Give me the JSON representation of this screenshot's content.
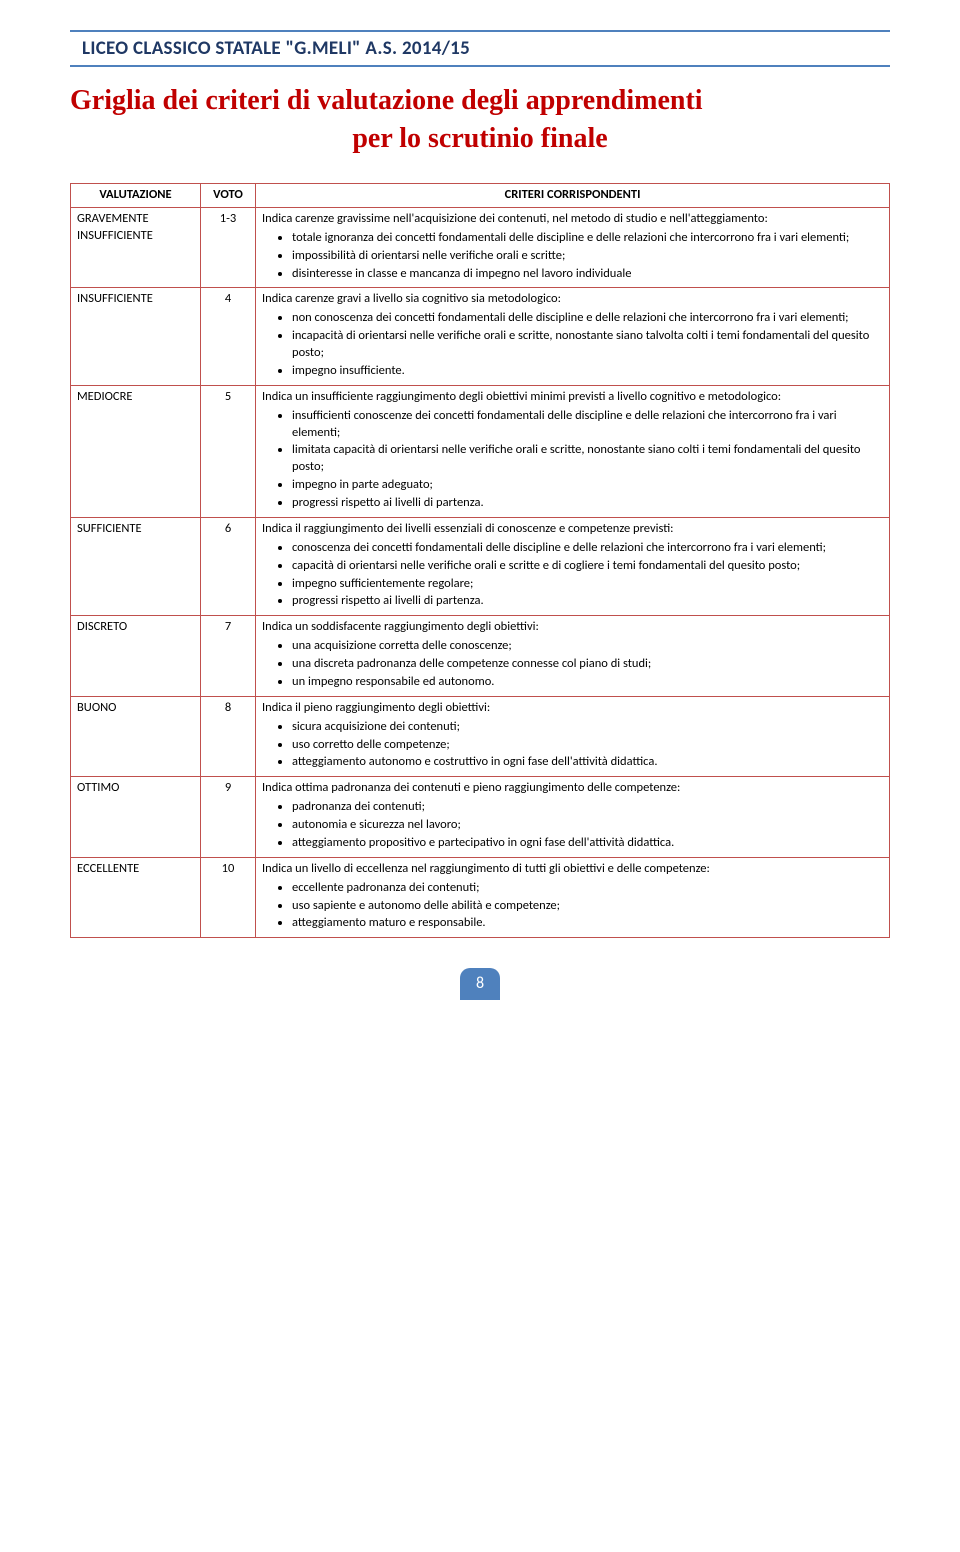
{
  "header": "LICEO CLASSICO STATALE \"G.MELI\" A.S. 2014/15",
  "title_line1": "Griglia dei criteri di valutazione degli apprendimenti",
  "title_line2": "per lo scrutinio finale",
  "columns": {
    "c1": "VALUTAZIONE",
    "c2": "VOTO",
    "c3": "CRITERI CORRISPONDENTI"
  },
  "rows": [
    {
      "label_line1": "GRAVEMENTE",
      "label_line2": "INSUFFICIENTE",
      "voto": "1-3",
      "intro": "Indica carenze gravissime nell'acquisizione dei contenuti, nel metodo di studio e nell'atteggiamento:",
      "bullets": [
        "totale ignoranza dei concetti fondamentali delle discipline e delle relazioni che intercorrono fra i vari elementi;",
        "impossibilità di orientarsi nelle verifiche orali e scritte;",
        "disinteresse in classe e mancanza di impegno nel lavoro individuale"
      ]
    },
    {
      "label": "INSUFFICIENTE",
      "voto": "4",
      "intro": "Indica carenze gravi a livello sia cognitivo sia metodologico:",
      "bullets": [
        "non conoscenza dei concetti fondamentali delle discipline e delle relazioni che intercorrono fra i vari elementi;",
        "incapacità di orientarsi nelle verifiche orali e scritte, nonostante siano talvolta colti i temi fondamentali del quesito posto;",
        "impegno insufficiente."
      ]
    },
    {
      "label": "MEDIOCRE",
      "voto": "5",
      "intro": "Indica un insufficiente raggiungimento degli obiettivi minimi previsti a livello cognitivo e metodologico:",
      "bullets": [
        "insufficienti conoscenze dei concetti fondamentali delle discipline e delle relazioni che intercorrono fra i vari elementi;",
        "limitata capacità di orientarsi nelle verifiche orali e scritte, nonostante siano colti i temi fondamentali del quesito posto;",
        "impegno in parte adeguato;",
        "progressi rispetto ai livelli di partenza."
      ]
    },
    {
      "label": "SUFFICIENTE",
      "voto": "6",
      "intro": "Indica il raggiungimento dei livelli essenziali di conoscenze e competenze previsti:",
      "bullets": [
        "conoscenza dei concetti fondamentali delle discipline e delle relazioni che intercorrono fra i vari elementi;",
        "capacità di orientarsi nelle verifiche orali e scritte e di cogliere i temi fondamentali del quesito posto;",
        "impegno sufficientemente regolare;",
        "progressi rispetto ai livelli di partenza."
      ]
    },
    {
      "label": "DISCRETO",
      "voto": "7",
      "intro": "Indica un soddisfacente raggiungimento degli obiettivi:",
      "bullets": [
        "una acquisizione corretta delle conoscenze;",
        "una discreta padronanza delle competenze connesse col piano di studi;",
        "un impegno responsabile ed autonomo."
      ]
    },
    {
      "label": "BUONO",
      "voto": "8",
      "intro": "Indica il pieno raggiungimento degli obiettivi:",
      "bullets": [
        "sicura acquisizione dei contenuti;",
        "uso corretto delle competenze;",
        "atteggiamento autonomo e costruttivo in ogni fase dell'attività didattica."
      ]
    },
    {
      "label": "OTTIMO",
      "voto": "9",
      "intro": "Indica ottima padronanza dei contenuti e pieno raggiungimento delle competenze:",
      "bullets": [
        "padronanza dei contenuti;",
        "autonomia e sicurezza nel lavoro;",
        "atteggiamento propositivo e partecipativo in ogni fase dell'attività didattica."
      ]
    },
    {
      "label": "ECCELLENTE",
      "voto": "10",
      "intro": "Indica un livello di eccellenza nel raggiungimento di tutti gli obiettivi e delle competenze:",
      "bullets": [
        "eccellente padronanza dei contenuti;",
        "uso sapiente e autonomo delle abilità e competenze;",
        "atteggiamento maturo e responsabile."
      ]
    }
  ],
  "page_number": "8",
  "colors": {
    "header_border": "#4f81bd",
    "header_text": "#1f3864",
    "title": "#c00000",
    "table_border": "#c0504d",
    "page_num_bg": "#4f81bd",
    "page_num_fg": "#ffffff"
  }
}
